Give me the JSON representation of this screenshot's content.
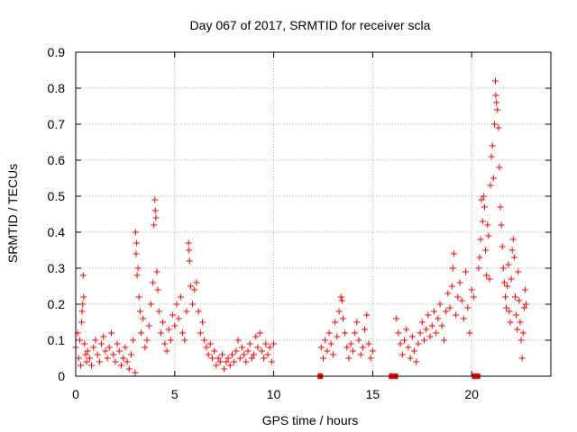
{
  "chart_data": {
    "type": "scatter",
    "title": "Day 067 of 2017, SRMTID for receiver scla",
    "xlabel": "GPS time / hours",
    "ylabel": "SRMTID / TECUs",
    "xlim": [
      0,
      24
    ],
    "ylim": [
      0,
      0.9
    ],
    "xticks": [
      0,
      5,
      10,
      15,
      20
    ],
    "yticks": [
      0,
      0.1,
      0.2,
      0.3,
      0.4,
      0.5,
      0.6,
      0.7,
      0.8,
      0.9
    ],
    "grid": true,
    "marker": "+",
    "color": "#ff0000",
    "series": [
      {
        "name": "SRMTID",
        "description": "dense cloud of + markers; representative sampled points",
        "points": [
          [
            0.0,
            0.08
          ],
          [
            0.1,
            0.12
          ],
          [
            0.15,
            0.05
          ],
          [
            0.2,
            0.1
          ],
          [
            0.25,
            0.03
          ],
          [
            0.3,
            0.15
          ],
          [
            0.32,
            0.18
          ],
          [
            0.35,
            0.2
          ],
          [
            0.38,
            0.28
          ],
          [
            0.4,
            0.22
          ],
          [
            0.45,
            0.09
          ],
          [
            0.5,
            0.06
          ],
          [
            0.55,
            0.04
          ],
          [
            0.6,
            0.07
          ],
          [
            0.7,
            0.05
          ],
          [
            0.8,
            0.03
          ],
          [
            0.9,
            0.08
          ],
          [
            1.0,
            0.1
          ],
          [
            1.1,
            0.06
          ],
          [
            1.2,
            0.04
          ],
          [
            1.3,
            0.09
          ],
          [
            1.4,
            0.11
          ],
          [
            1.5,
            0.07
          ],
          [
            1.6,
            0.05
          ],
          [
            1.7,
            0.08
          ],
          [
            1.8,
            0.12
          ],
          [
            1.9,
            0.06
          ],
          [
            2.0,
            0.04
          ],
          [
            2.1,
            0.09
          ],
          [
            2.2,
            0.07
          ],
          [
            2.3,
            0.03
          ],
          [
            2.4,
            0.05
          ],
          [
            2.5,
            0.08
          ],
          [
            2.6,
            0.04
          ],
          [
            2.7,
            0.02
          ],
          [
            2.8,
            0.06
          ],
          [
            2.9,
            0.1
          ],
          [
            3.0,
            0.01
          ],
          [
            3.02,
            0.4
          ],
          [
            3.05,
            0.34
          ],
          [
            3.08,
            0.37
          ],
          [
            3.1,
            0.28
          ],
          [
            3.15,
            0.3
          ],
          [
            3.2,
            0.22
          ],
          [
            3.25,
            0.18
          ],
          [
            3.3,
            0.12
          ],
          [
            3.4,
            0.16
          ],
          [
            3.5,
            0.08
          ],
          [
            3.6,
            0.1
          ],
          [
            3.7,
            0.14
          ],
          [
            3.8,
            0.2
          ],
          [
            3.9,
            0.26
          ],
          [
            3.95,
            0.42
          ],
          [
            4.0,
            0.49
          ],
          [
            4.02,
            0.46
          ],
          [
            4.05,
            0.44
          ],
          [
            4.1,
            0.29
          ],
          [
            4.15,
            0.24
          ],
          [
            4.2,
            0.18
          ],
          [
            4.3,
            0.12
          ],
          [
            4.4,
            0.15
          ],
          [
            4.5,
            0.09
          ],
          [
            4.6,
            0.07
          ],
          [
            4.7,
            0.13
          ],
          [
            4.8,
            0.1
          ],
          [
            4.9,
            0.17
          ],
          [
            5.0,
            0.14
          ],
          [
            5.1,
            0.2
          ],
          [
            5.2,
            0.16
          ],
          [
            5.3,
            0.22
          ],
          [
            5.4,
            0.12
          ],
          [
            5.5,
            0.1
          ],
          [
            5.6,
            0.18
          ],
          [
            5.7,
            0.37
          ],
          [
            5.72,
            0.35
          ],
          [
            5.75,
            0.32
          ],
          [
            5.8,
            0.25
          ],
          [
            5.9,
            0.2
          ],
          [
            6.0,
            0.24
          ],
          [
            6.1,
            0.26
          ],
          [
            6.2,
            0.18
          ],
          [
            6.3,
            0.12
          ],
          [
            6.4,
            0.15
          ],
          [
            6.5,
            0.1
          ],
          [
            6.6,
            0.08
          ],
          [
            6.7,
            0.06
          ],
          [
            6.8,
            0.09
          ],
          [
            6.9,
            0.05
          ],
          [
            7.0,
            0.07
          ],
          [
            7.1,
            0.03
          ],
          [
            7.2,
            0.05
          ],
          [
            7.3,
            0.04
          ],
          [
            7.4,
            0.06
          ],
          [
            7.5,
            0.02
          ],
          [
            7.6,
            0.04
          ],
          [
            7.7,
            0.05
          ],
          [
            7.8,
            0.03
          ],
          [
            7.9,
            0.06
          ],
          [
            8.0,
            0.04
          ],
          [
            8.1,
            0.07
          ],
          [
            8.2,
            0.1
          ],
          [
            8.3,
            0.05
          ],
          [
            8.4,
            0.08
          ],
          [
            8.5,
            0.06
          ],
          [
            8.6,
            0.04
          ],
          [
            8.7,
            0.07
          ],
          [
            8.8,
            0.09
          ],
          [
            8.9,
            0.05
          ],
          [
            9.0,
            0.06
          ],
          [
            9.1,
            0.11
          ],
          [
            9.2,
            0.08
          ],
          [
            9.3,
            0.12
          ],
          [
            9.4,
            0.07
          ],
          [
            9.5,
            0.05
          ],
          [
            9.6,
            0.09
          ],
          [
            9.7,
            0.06
          ],
          [
            9.8,
            0.08
          ],
          [
            9.9,
            0.04
          ],
          [
            10.0,
            0.09
          ],
          [
            12.35,
            0.0
          ],
          [
            12.4,
            0.08
          ],
          [
            12.5,
            0.05
          ],
          [
            12.6,
            0.1
          ],
          [
            12.7,
            0.07
          ],
          [
            12.8,
            0.12
          ],
          [
            12.9,
            0.09
          ],
          [
            13.0,
            0.06
          ],
          [
            13.1,
            0.15
          ],
          [
            13.2,
            0.11
          ],
          [
            13.3,
            0.18
          ],
          [
            13.4,
            0.22
          ],
          [
            13.45,
            0.21
          ],
          [
            13.5,
            0.16
          ],
          [
            13.6,
            0.12
          ],
          [
            13.7,
            0.08
          ],
          [
            13.8,
            0.05
          ],
          [
            13.9,
            0.09
          ],
          [
            14.0,
            0.07
          ],
          [
            14.1,
            0.12
          ],
          [
            14.2,
            0.15
          ],
          [
            14.3,
            0.1
          ],
          [
            14.4,
            0.06
          ],
          [
            14.5,
            0.08
          ],
          [
            14.6,
            0.13
          ],
          [
            14.7,
            0.17
          ],
          [
            14.8,
            0.09
          ],
          [
            14.9,
            0.05
          ],
          [
            15.0,
            0.07
          ],
          [
            15.95,
            0.0
          ],
          [
            16.15,
            0.0
          ],
          [
            16.2,
            0.16
          ],
          [
            16.3,
            0.12
          ],
          [
            16.4,
            0.09
          ],
          [
            16.5,
            0.06
          ],
          [
            16.6,
            0.1
          ],
          [
            16.7,
            0.13
          ],
          [
            16.8,
            0.08
          ],
          [
            16.9,
            0.05
          ],
          [
            17.0,
            0.11
          ],
          [
            17.1,
            0.07
          ],
          [
            17.2,
            0.04
          ],
          [
            17.3,
            0.09
          ],
          [
            17.4,
            0.12
          ],
          [
            17.5,
            0.15
          ],
          [
            17.6,
            0.1
          ],
          [
            17.7,
            0.13
          ],
          [
            17.8,
            0.17
          ],
          [
            17.9,
            0.11
          ],
          [
            18.0,
            0.14
          ],
          [
            18.1,
            0.18
          ],
          [
            18.2,
            0.12
          ],
          [
            18.3,
            0.16
          ],
          [
            18.4,
            0.2
          ],
          [
            18.5,
            0.14
          ],
          [
            18.6,
            0.1
          ],
          [
            18.7,
            0.18
          ],
          [
            18.8,
            0.23
          ],
          [
            18.9,
            0.19
          ],
          [
            19.0,
            0.25
          ],
          [
            19.05,
            0.3
          ],
          [
            19.1,
            0.34
          ],
          [
            19.2,
            0.17
          ],
          [
            19.3,
            0.22
          ],
          [
            19.4,
            0.26
          ],
          [
            19.5,
            0.21
          ],
          [
            19.6,
            0.16
          ],
          [
            19.7,
            0.29
          ],
          [
            19.8,
            0.19
          ],
          [
            19.9,
            0.12
          ],
          [
            20.0,
            0.24
          ],
          [
            20.1,
            0.22
          ],
          [
            20.15,
            0.0
          ],
          [
            20.3,
            0.0
          ],
          [
            20.35,
            0.3
          ],
          [
            20.4,
            0.33
          ],
          [
            20.45,
            0.38
          ],
          [
            20.5,
            0.49
          ],
          [
            20.55,
            0.43
          ],
          [
            20.6,
            0.5
          ],
          [
            20.65,
            0.47
          ],
          [
            20.7,
            0.35
          ],
          [
            20.75,
            0.28
          ],
          [
            20.8,
            0.42
          ],
          [
            20.85,
            0.39
          ],
          [
            20.9,
            0.27
          ],
          [
            20.95,
            0.53
          ],
          [
            21.0,
            0.61
          ],
          [
            21.05,
            0.64
          ],
          [
            21.1,
            0.55
          ],
          [
            21.15,
            0.7
          ],
          [
            21.2,
            0.82
          ],
          [
            21.22,
            0.78
          ],
          [
            21.25,
            0.76
          ],
          [
            21.3,
            0.74
          ],
          [
            21.35,
            0.69
          ],
          [
            21.4,
            0.58
          ],
          [
            21.45,
            0.47
          ],
          [
            21.5,
            0.42
          ],
          [
            21.55,
            0.36
          ],
          [
            21.6,
            0.3
          ],
          [
            21.65,
            0.26
          ],
          [
            21.7,
            0.22
          ],
          [
            21.75,
            0.19
          ],
          [
            21.8,
            0.25
          ],
          [
            21.85,
            0.31
          ],
          [
            21.9,
            0.18
          ],
          [
            21.95,
            0.15
          ],
          [
            22.0,
            0.27
          ],
          [
            22.05,
            0.35
          ],
          [
            22.1,
            0.38
          ],
          [
            22.15,
            0.33
          ],
          [
            22.2,
            0.22
          ],
          [
            22.25,
            0.17
          ],
          [
            22.3,
            0.13
          ],
          [
            22.35,
            0.29
          ],
          [
            22.4,
            0.21
          ],
          [
            22.45,
            0.15
          ],
          [
            22.5,
            0.1
          ],
          [
            22.55,
            0.05
          ],
          [
            22.6,
            0.12
          ],
          [
            22.65,
            0.19
          ],
          [
            22.7,
            0.24
          ],
          [
            22.75,
            0.2
          ]
        ],
        "zero_markers": [
          12.35,
          15.95,
          16.15,
          20.15,
          20.2,
          20.3
        ]
      }
    ]
  }
}
